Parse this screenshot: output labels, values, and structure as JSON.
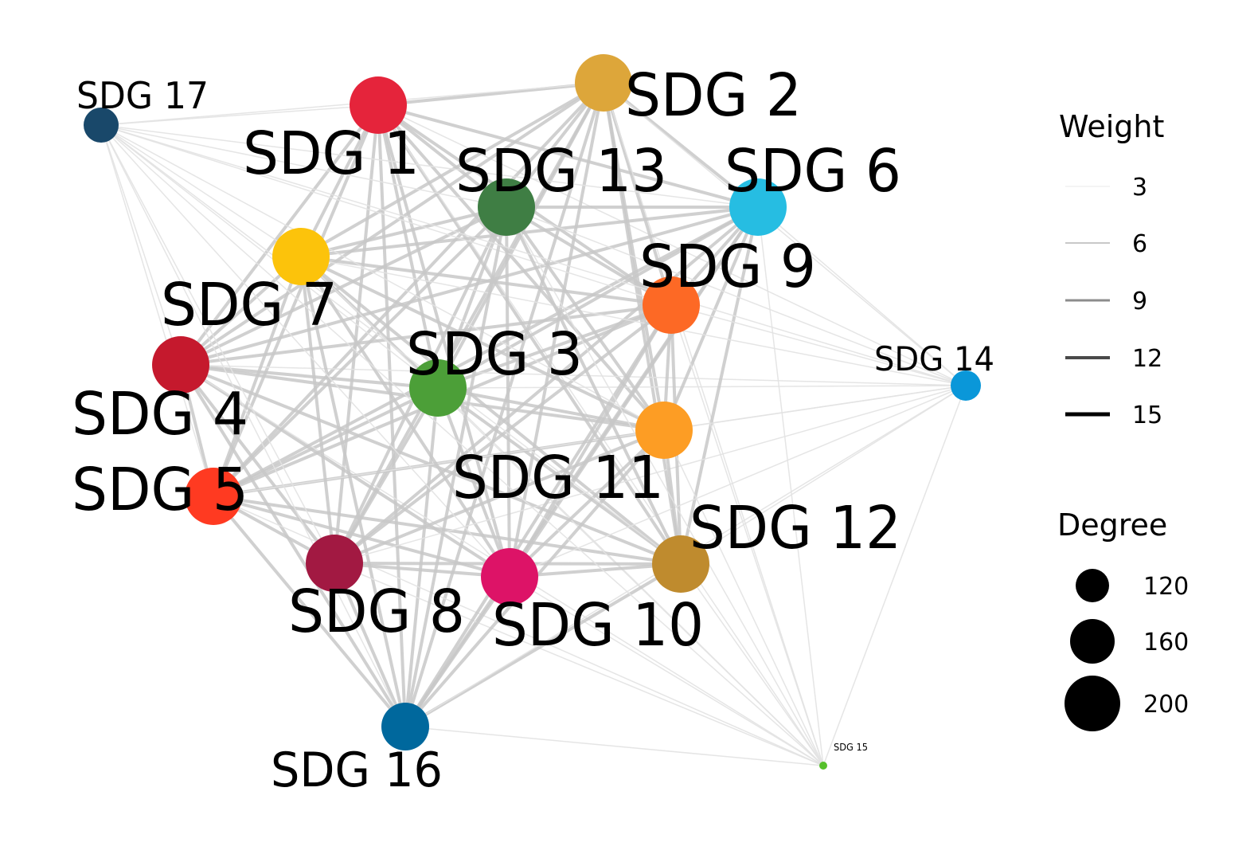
{
  "graph": {
    "nodes": [
      {
        "id": "SDG 1",
        "label": "SDG 1",
        "color": "#E5243B",
        "size": "large"
      },
      {
        "id": "SDG 2",
        "label": "SDG 2",
        "color": "#DDA63A",
        "size": "large"
      },
      {
        "id": "SDG 3",
        "label": "SDG 3",
        "color": "#4C9F38",
        "size": "large"
      },
      {
        "id": "SDG 4",
        "label": "SDG 4",
        "color": "#C5192D",
        "size": "large"
      },
      {
        "id": "SDG 5",
        "label": "SDG 5",
        "color": "#FF3A21",
        "size": "large"
      },
      {
        "id": "SDG 6",
        "label": "SDG 6",
        "color": "#26BDE2",
        "size": "large"
      },
      {
        "id": "SDG 7",
        "label": "SDG 7",
        "color": "#FCC30B",
        "size": "large"
      },
      {
        "id": "SDG 8",
        "label": "SDG 8",
        "color": "#A21942",
        "size": "large"
      },
      {
        "id": "SDG 9",
        "label": "SDG 9",
        "color": "#FD6925",
        "size": "large"
      },
      {
        "id": "SDG 10",
        "label": "SDG 10",
        "color": "#DD1367",
        "size": "large"
      },
      {
        "id": "SDG 11",
        "label": "SDG 11",
        "color": "#FD9D24",
        "size": "large"
      },
      {
        "id": "SDG 12",
        "label": "SDG 12",
        "color": "#BF8B2E",
        "size": "large"
      },
      {
        "id": "SDG 13",
        "label": "SDG 13",
        "color": "#3F7E44",
        "size": "large"
      },
      {
        "id": "SDG 14",
        "label": "SDG 14",
        "color": "#0A97D9",
        "size": "medium"
      },
      {
        "id": "SDG 15",
        "label": "SDG 15",
        "color": "#56C02B",
        "size": "tiny"
      },
      {
        "id": "SDG 16",
        "label": "SDG 16",
        "color": "#00689D",
        "size": "large"
      },
      {
        "id": "SDG 17",
        "label": "SDG 17",
        "color": "#19486A",
        "size": "medium"
      }
    ],
    "edge_color": "#c8c8c8"
  },
  "legend": {
    "weight": {
      "title": "Weight",
      "items": [
        "3",
        "6",
        "9",
        "12",
        "15"
      ]
    },
    "degree": {
      "title": "Degree",
      "items": [
        "120",
        "160",
        "200"
      ]
    }
  }
}
